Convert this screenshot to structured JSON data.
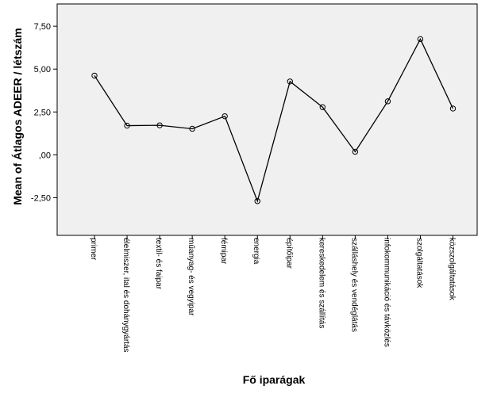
{
  "chart_data": {
    "type": "line",
    "title": "",
    "xlabel": "Fő iparágak",
    "ylabel": "Mean of Átlagos ADEER / létszám",
    "categories": [
      "primer",
      "élelmiszer, ital és dohánygyártás",
      "textil- és faipar",
      "műanyag- és vegyipar",
      "fémipar",
      "energia",
      "építőipar",
      "kereskedelem és szállítás",
      "szálláshely és vendéglátás",
      "infokommunikáció és távközlés",
      "szolgáltatások",
      "közszolgáltatások"
    ],
    "values": [
      4.62,
      1.7,
      1.72,
      1.52,
      2.25,
      -2.7,
      4.28,
      2.78,
      0.18,
      3.12,
      6.75,
      2.7
    ],
    "yticks": [
      {
        "value": 7.5,
        "label": "7,50"
      },
      {
        "value": 5.0,
        "label": "5,00"
      },
      {
        "value": 2.5,
        "label": "2,50"
      },
      {
        "value": 0.0,
        "label": ",00"
      },
      {
        "value": -2.5,
        "label": "-2,50"
      }
    ],
    "ylim": [
      -4.7,
      8.8
    ],
    "grid": false,
    "legend": "none",
    "colors": {
      "line": "#000000",
      "plot_background": "#f0f0f0",
      "frame": "#000000"
    }
  }
}
